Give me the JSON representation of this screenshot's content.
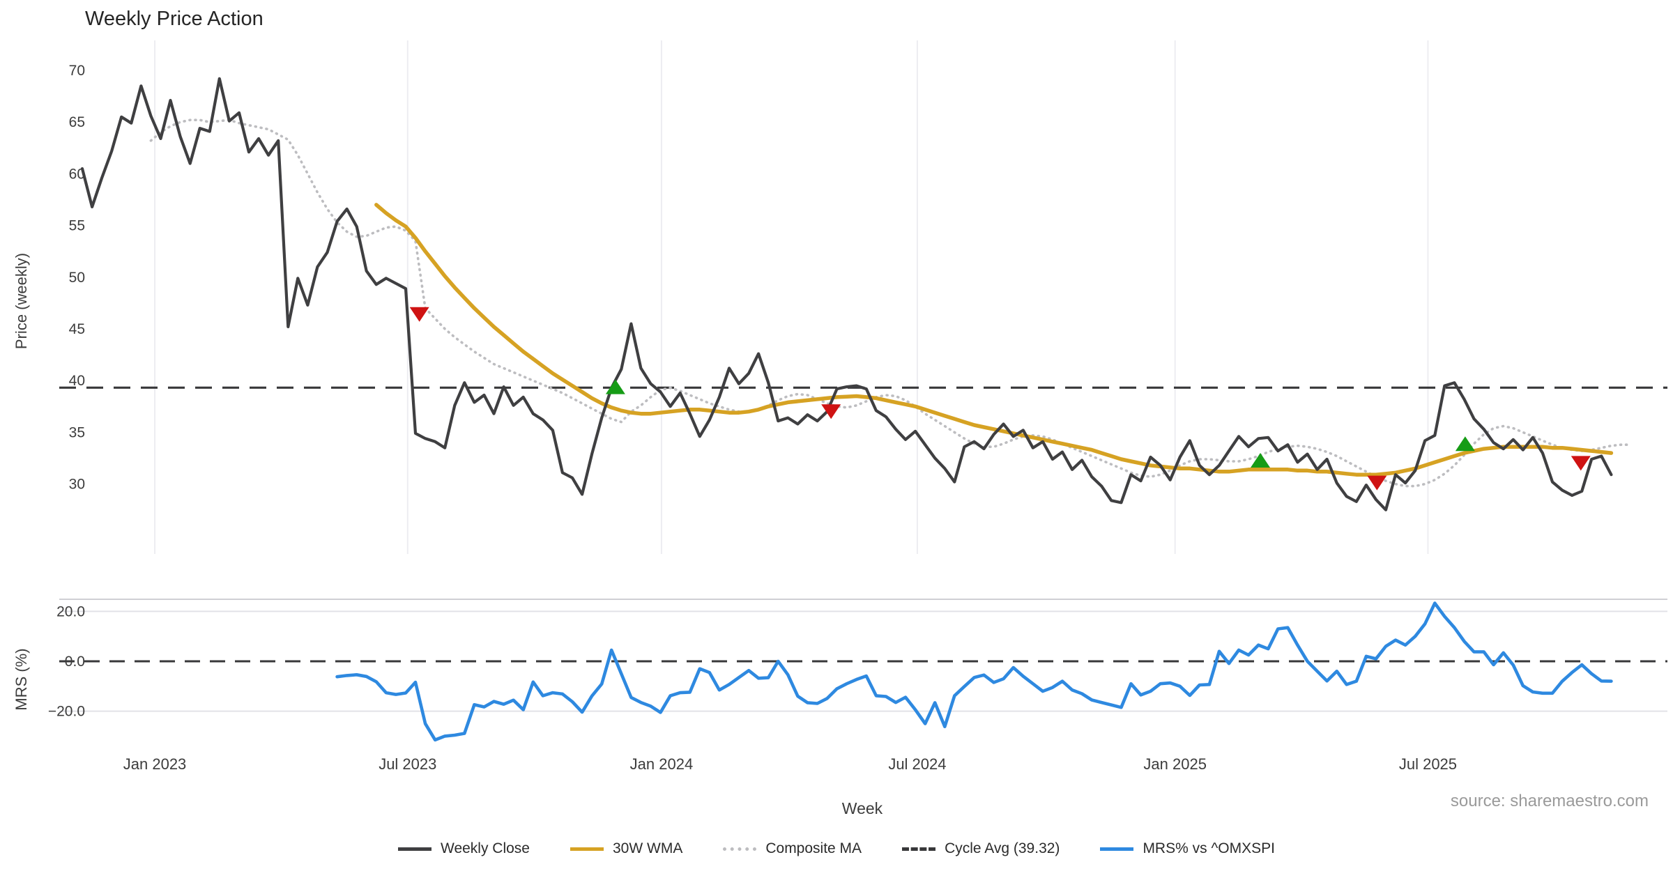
{
  "title": "Weekly Price Action",
  "source_note": "source: sharemaestro.com",
  "colors": {
    "weekly_close": "#3f3f41",
    "wma": "#d6a223",
    "composite": "#bdbdc0",
    "cycle_avg": "#38383a",
    "mrs": "#2e89e0",
    "marker_red": "#cf1313",
    "marker_green": "#169c16",
    "gridline": "#ededf1",
    "lower_gridline": "#e2e2e7",
    "tick_text": "#3c3c3c",
    "source_text": "#9a9a9a",
    "title_text": "#252525"
  },
  "legend": [
    {
      "label": "Weekly Close",
      "style": "solid",
      "color": "#3f3f41"
    },
    {
      "label": "30W WMA",
      "style": "solid",
      "color": "#d6a223"
    },
    {
      "label": "Composite MA",
      "style": "dotted",
      "color": "#bdbdc0"
    },
    {
      "label": "Cycle Avg (39.32)",
      "style": "dashed",
      "color": "#38383a"
    },
    {
      "label": "MRS% vs ^OMXSPI",
      "style": "solid",
      "color": "#2e89e0"
    }
  ],
  "chart_data": [
    {
      "type": "line",
      "panel": "price",
      "ylabel": "Price (weekly)",
      "yticks": [
        70,
        65,
        60,
        55,
        50,
        45,
        40,
        35,
        30
      ],
      "ylim": [
        27.0,
        72.5
      ],
      "grid": "vertical-only",
      "cycle_avg": 39.32,
      "xticks": [
        {
          "label": "Jan 2023",
          "week": 7.4
        },
        {
          "label": "Jul 2023",
          "week": 33.2
        },
        {
          "label": "Jan 2024",
          "week": 59.1
        },
        {
          "label": "Jul 2024",
          "week": 85.2
        },
        {
          "label": "Jan 2025",
          "week": 111.5
        },
        {
          "label": "Jul 2025",
          "week": 137.3
        }
      ],
      "series": [
        {
          "name": "Weekly Close",
          "start_week": 0,
          "values": [
            60.5,
            56.8,
            59.6,
            62.2,
            65.5,
            64.9,
            68.5,
            65.6,
            63.4,
            67.1,
            63.6,
            61.0,
            64.4,
            64.1,
            69.2,
            65.1,
            65.9,
            62.1,
            63.4,
            61.8,
            63.2,
            45.2,
            49.9,
            47.3,
            51.0,
            52.4,
            55.4,
            56.6,
            54.9,
            50.6,
            49.3,
            49.9,
            49.4,
            48.9,
            34.9,
            34.4,
            34.1,
            33.5,
            37.6,
            39.8,
            37.9,
            38.6,
            36.8,
            39.4,
            37.6,
            38.4,
            36.8,
            36.2,
            35.2,
            31.1,
            30.6,
            29.0,
            32.9,
            36.4,
            39.3,
            41.1,
            45.5,
            41.2,
            39.7,
            38.9,
            37.5,
            38.8,
            36.8,
            34.6,
            36.2,
            38.4,
            41.2,
            39.7,
            40.7,
            42.6,
            39.8,
            36.1,
            36.4,
            35.8,
            36.7,
            36.1,
            37.0,
            39.2,
            39.4,
            39.5,
            39.2,
            37.1,
            36.5,
            35.3,
            34.3,
            35.1,
            33.8,
            32.5,
            31.5,
            30.2,
            33.6,
            34.1,
            33.4,
            34.8,
            35.8,
            34.6,
            35.2,
            33.5,
            34.1,
            32.4,
            33.1,
            31.4,
            32.3,
            30.7,
            29.8,
            28.4,
            28.2,
            30.9,
            30.3,
            32.6,
            31.8,
            30.4,
            32.6,
            34.2,
            31.8,
            30.9,
            31.8,
            33.2,
            34.6,
            33.6,
            34.4,
            34.5,
            33.2,
            33.8,
            32.1,
            32.9,
            31.4,
            32.4,
            30.1,
            28.8,
            28.3,
            29.9,
            28.5,
            27.5,
            30.9,
            30.1,
            31.3,
            34.2,
            34.7,
            39.5,
            39.8,
            38.2,
            36.3,
            35.3,
            34.0,
            33.4,
            34.3,
            33.3,
            34.5,
            33.0,
            30.2,
            29.4,
            28.9,
            29.3,
            32.4,
            32.7,
            30.9
          ]
        },
        {
          "name": "Composite MA",
          "start_week": 7,
          "values": [
            63.2,
            64.0,
            64.6,
            65.0,
            65.2,
            65.2,
            65.0,
            65.1,
            65.2,
            64.9,
            64.7,
            64.5,
            64.3,
            63.8,
            63.3,
            61.8,
            60.0,
            58.2,
            56.6,
            55.3,
            54.4,
            53.9,
            54.0,
            54.4,
            54.8,
            54.9,
            54.5,
            53.5,
            47.0,
            46.0,
            45.0,
            44.2,
            43.5,
            42.8,
            42.2,
            41.6,
            41.2,
            40.8,
            40.4,
            40.0,
            39.6,
            39.2,
            38.8,
            38.3,
            37.8,
            37.3,
            36.8,
            36.3,
            36.0,
            37.0,
            37.6,
            38.4,
            39.1,
            39.3,
            39.0,
            38.6,
            38.2,
            37.8,
            37.5,
            37.2,
            37.0,
            37.0,
            37.2,
            37.6,
            38.1,
            38.5,
            38.7,
            38.6,
            38.2,
            37.8,
            37.5,
            37.4,
            37.6,
            38.0,
            38.4,
            38.6,
            38.5,
            38.1,
            37.5,
            36.8,
            36.2,
            35.6,
            35.0,
            34.4,
            33.9,
            33.6,
            33.6,
            33.9,
            34.3,
            34.6,
            34.7,
            34.6,
            34.3,
            33.9,
            33.5,
            33.1,
            32.7,
            32.3,
            31.9,
            31.5,
            31.1,
            30.8,
            30.7,
            30.9,
            31.3,
            31.8,
            32.2,
            32.4,
            32.4,
            32.3,
            32.2,
            32.2,
            32.4,
            32.7,
            33.1,
            33.4,
            33.6,
            33.7,
            33.6,
            33.4,
            33.1,
            32.7,
            32.2,
            31.7,
            31.2,
            30.7,
            30.3,
            30.0,
            29.8,
            29.8,
            30.0,
            30.4,
            31.0,
            31.8,
            32.8,
            33.9,
            34.8,
            35.4,
            35.6,
            35.4,
            35.0,
            34.6,
            34.2,
            33.8,
            33.5,
            33.3,
            33.2,
            33.3,
            33.5,
            33.7,
            33.8,
            33.8
          ]
        },
        {
          "name": "30W WMA",
          "start_week": 30,
          "values": [
            57.0,
            56.2,
            55.5,
            54.9,
            53.8,
            52.5,
            51.3,
            50.1,
            49.0,
            48.0,
            47.0,
            46.1,
            45.2,
            44.4,
            43.6,
            42.8,
            42.1,
            41.4,
            40.7,
            40.1,
            39.5,
            38.9,
            38.3,
            37.8,
            37.4,
            37.1,
            36.9,
            36.8,
            36.8,
            36.9,
            37.0,
            37.1,
            37.2,
            37.2,
            37.1,
            37.0,
            36.9,
            36.9,
            37.0,
            37.2,
            37.5,
            37.7,
            37.9,
            38.0,
            38.1,
            38.2,
            38.3,
            38.4,
            38.45,
            38.5,
            38.4,
            38.3,
            38.1,
            37.9,
            37.7,
            37.5,
            37.2,
            36.9,
            36.6,
            36.3,
            36.0,
            35.7,
            35.5,
            35.3,
            35.1,
            34.9,
            34.7,
            34.5,
            34.3,
            34.1,
            33.9,
            33.7,
            33.5,
            33.3,
            33.0,
            32.7,
            32.4,
            32.2,
            32.0,
            31.8,
            31.7,
            31.6,
            31.5,
            31.5,
            31.4,
            31.3,
            31.2,
            31.2,
            31.3,
            31.4,
            31.4,
            31.4,
            31.4,
            31.4,
            31.3,
            31.3,
            31.2,
            31.2,
            31.1,
            31.0,
            30.9,
            30.9,
            30.9,
            31.0,
            31.1,
            31.3,
            31.5,
            31.8,
            32.1,
            32.4,
            32.7,
            33.0,
            33.2,
            33.4,
            33.5,
            33.6,
            33.6,
            33.6,
            33.6,
            33.6,
            33.5,
            33.5,
            33.4,
            33.3,
            33.2,
            33.1,
            33.0
          ]
        }
      ],
      "markers": {
        "red_down": [
          [
            34.4,
            46.5
          ],
          [
            76.4,
            37.1
          ],
          [
            132.1,
            30.2
          ],
          [
            152.9,
            32.1
          ]
        ],
        "green_up": [
          [
            54.4,
            39.3
          ],
          [
            120.2,
            32.2
          ],
          [
            141.1,
            33.8
          ]
        ]
      }
    },
    {
      "type": "line",
      "panel": "mrs",
      "ylabel": "MRS (%)",
      "xlabel": "Week",
      "yticks": [
        20.0,
        0.0,
        -20.0
      ],
      "ylim": [
        -37,
        24
      ],
      "zero_line_dashed": true,
      "series": [
        {
          "name": "MRS% vs ^OMXSPI",
          "start_week": 26,
          "values": [
            -6.2,
            -5.7,
            -5.4,
            -6.1,
            -8.2,
            -12.6,
            -13.3,
            -12.7,
            -8.4,
            -25.0,
            -31.5,
            -30.0,
            -29.6,
            -28.9,
            -17.4,
            -18.3,
            -16.1,
            -17.2,
            -15.6,
            -19.4,
            -8.3,
            -13.8,
            -12.6,
            -13.1,
            -16.2,
            -20.4,
            -13.9,
            -9.1,
            4.5,
            -5.0,
            -14.5,
            -16.5,
            -18.0,
            -20.5,
            -13.8,
            -12.6,
            -12.4,
            -3.0,
            -4.5,
            -11.5,
            -9.3,
            -6.5,
            -3.7,
            -6.8,
            -6.6,
            0.0,
            -5.4,
            -14.0,
            -16.6,
            -16.9,
            -14.9,
            -11.0,
            -9.0,
            -7.3,
            -5.9,
            -13.8,
            -14.1,
            -16.5,
            -14.4,
            -19.4,
            -25.0,
            -16.6,
            -26.2,
            -13.8,
            -10.1,
            -6.5,
            -5.5,
            -8.5,
            -7.0,
            -2.5,
            -6.0,
            -9.0,
            -12.0,
            -10.5,
            -8.0,
            -11.5,
            -13.0,
            -15.5,
            -16.5,
            -17.5,
            -18.5,
            -9.0,
            -13.5,
            -12.0,
            -9.0,
            -8.7,
            -10.0,
            -13.7,
            -9.5,
            -9.3,
            4.0,
            -0.9,
            4.5,
            2.5,
            6.5,
            5.0,
            13.0,
            13.5,
            6.5,
            0.0,
            -4.0,
            -7.9,
            -4.0,
            -9.3,
            -8.0,
            2.0,
            1.0,
            6.0,
            8.5,
            6.5,
            10.0,
            15.0,
            23.3,
            18.0,
            13.5,
            8.0,
            3.8,
            3.8,
            -1.4,
            3.4,
            -1.5,
            -9.8,
            -12.3,
            -12.8,
            -12.8,
            -8.0,
            -4.5,
            -1.4,
            -5.0,
            -7.9,
            -8.0
          ]
        }
      ]
    }
  ]
}
